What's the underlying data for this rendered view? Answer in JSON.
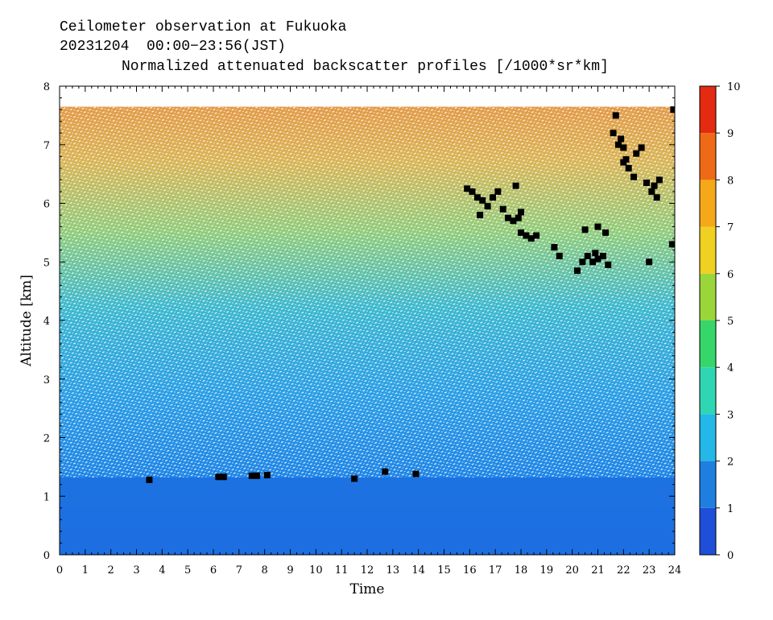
{
  "header": {
    "line1": "Ceilometer observation at Fukuoka",
    "line2": "20231204  00:00−23:56(JST)",
    "subtitle": "Normalized attenuated backscatter profiles [/1000*sr*km]"
  },
  "chart_data": {
    "type": "heatmap",
    "title": "Normalized attenuated backscatter profiles [/1000*sr*km]",
    "xlabel": "Time",
    "ylabel": "Altitude [km]",
    "xlim": [
      0,
      24
    ],
    "ylim": [
      0,
      8
    ],
    "x_ticks": [
      "0",
      "1",
      "2",
      "3",
      "4",
      "5",
      "6",
      "7",
      "8",
      "9",
      "10",
      "11",
      "12",
      "13",
      "14",
      "15",
      "16",
      "17",
      "18",
      "19",
      "20",
      "21",
      "22",
      "23",
      "24"
    ],
    "y_ticks": [
      "0",
      "1",
      "2",
      "3",
      "4",
      "5",
      "6",
      "7",
      "8"
    ],
    "colorbar": {
      "range": [
        0,
        10
      ],
      "ticks": [
        "0",
        "1",
        "2",
        "3",
        "4",
        "5",
        "6",
        "7",
        "8",
        "9",
        "10"
      ],
      "colors": [
        "#1f4fd8",
        "#1e7fe0",
        "#23b8e8",
        "#2fd6b4",
        "#36d66a",
        "#9ad63a",
        "#f0d020",
        "#f5a818",
        "#ef6a16",
        "#e42a10"
      ]
    },
    "data_top_altitude": 7.65,
    "cloud_base_points": [
      [
        3.5,
        1.28
      ],
      [
        6.2,
        1.33
      ],
      [
        6.4,
        1.33
      ],
      [
        7.5,
        1.35
      ],
      [
        7.7,
        1.35
      ],
      [
        8.1,
        1.36
      ],
      [
        11.5,
        1.3
      ],
      [
        12.7,
        1.42
      ],
      [
        13.9,
        1.38
      ],
      [
        15.9,
        6.25
      ],
      [
        16.1,
        6.2
      ],
      [
        16.3,
        6.1
      ],
      [
        16.5,
        6.05
      ],
      [
        16.7,
        5.95
      ],
      [
        16.9,
        6.1
      ],
      [
        17.1,
        6.2
      ],
      [
        17.3,
        5.9
      ],
      [
        17.5,
        5.75
      ],
      [
        17.7,
        5.7
      ],
      [
        17.9,
        5.75
      ],
      [
        18.0,
        5.5
      ],
      [
        18.2,
        5.45
      ],
      [
        18.4,
        5.4
      ],
      [
        18.6,
        5.45
      ],
      [
        17.8,
        6.3
      ],
      [
        18.0,
        5.85
      ],
      [
        16.4,
        5.8
      ],
      [
        19.3,
        5.25
      ],
      [
        19.5,
        5.1
      ],
      [
        20.2,
        4.85
      ],
      [
        20.4,
        5.0
      ],
      [
        20.6,
        5.1
      ],
      [
        20.8,
        5.0
      ],
      [
        21.0,
        5.05
      ],
      [
        21.2,
        5.1
      ],
      [
        21.4,
        4.95
      ],
      [
        20.9,
        5.15
      ],
      [
        21.0,
        5.6
      ],
      [
        21.3,
        5.5
      ],
      [
        20.5,
        5.55
      ],
      [
        21.6,
        7.2
      ],
      [
        21.8,
        7.0
      ],
      [
        21.7,
        7.5
      ],
      [
        22.0,
        6.95
      ],
      [
        22.1,
        6.75
      ],
      [
        22.2,
        6.6
      ],
      [
        22.0,
        6.7
      ],
      [
        21.9,
        7.1
      ],
      [
        22.5,
        6.85
      ],
      [
        22.7,
        6.95
      ],
      [
        22.4,
        6.45
      ],
      [
        22.9,
        6.35
      ],
      [
        23.1,
        6.2
      ],
      [
        23.3,
        6.1
      ],
      [
        23.2,
        6.3
      ],
      [
        23.4,
        6.4
      ],
      [
        23.0,
        5.0
      ],
      [
        23.9,
        5.3
      ],
      [
        23.95,
        7.6
      ]
    ]
  }
}
